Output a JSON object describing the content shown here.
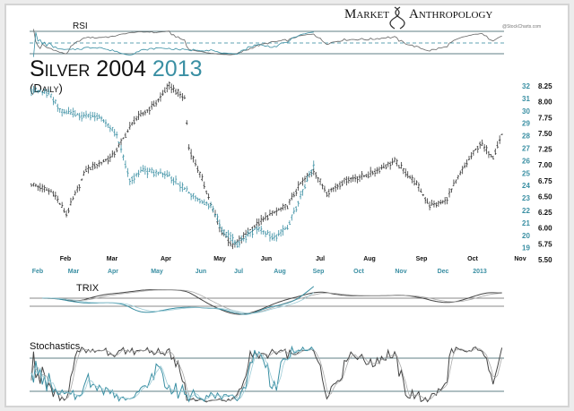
{
  "header": {
    "logo_left": "Market",
    "logo_right": "Anthropology",
    "credit": "@StockCharts.com"
  },
  "title": {
    "main": "Silver 2004",
    "accent": "2013",
    "subtitle": "(Daily)"
  },
  "colors": {
    "series_2004": "#333333",
    "series_2013": "#3a8fa3",
    "accent_text": "#3a8fa3",
    "guide": "#5f7f86"
  },
  "chart_data": {
    "type": "line",
    "title": "Silver 2004 2013 (Daily)",
    "x_unit": "trading day",
    "series": [
      {
        "name": "2004",
        "axis": "right-black",
        "points": [
          [
            0,
            6.7
          ],
          [
            10,
            6.56
          ],
          [
            16,
            6.21
          ],
          [
            25,
            6.92
          ],
          [
            37,
            7.13
          ],
          [
            47,
            7.7
          ],
          [
            57,
            7.98
          ],
          [
            63,
            8.26
          ],
          [
            70,
            8.05
          ],
          [
            72,
            7.27
          ],
          [
            78,
            6.77
          ],
          [
            86,
            6.0
          ],
          [
            92,
            5.71
          ],
          [
            101,
            6.0
          ],
          [
            109,
            6.21
          ],
          [
            117,
            6.35
          ],
          [
            123,
            6.7
          ],
          [
            129,
            6.92
          ],
          [
            135,
            6.56
          ],
          [
            144,
            6.77
          ],
          [
            154,
            6.84
          ],
          [
            166,
            7.06
          ],
          [
            176,
            6.7
          ],
          [
            182,
            6.35
          ],
          [
            189,
            6.42
          ],
          [
            197,
            6.92
          ],
          [
            205,
            7.34
          ],
          [
            211,
            7.13
          ],
          [
            215,
            7.48
          ]
        ]
      },
      {
        "name": "2013",
        "axis": "right-teal",
        "points": [
          [
            0,
            31.7
          ],
          [
            8,
            31.4
          ],
          [
            14,
            29.9
          ],
          [
            23,
            29.6
          ],
          [
            31,
            29.6
          ],
          [
            39,
            28.1
          ],
          [
            45,
            24.5
          ],
          [
            51,
            25.2
          ],
          [
            62,
            24.9
          ],
          [
            72,
            23.4
          ],
          [
            82,
            22.4
          ],
          [
            88,
            20.2
          ],
          [
            94,
            19.3
          ],
          [
            103,
            20.6
          ],
          [
            111,
            19.8
          ],
          [
            117,
            20.6
          ],
          [
            123,
            23.1
          ],
          [
            129,
            25.6
          ]
        ]
      }
    ],
    "axis_2004": {
      "ticks": [
        "8.25",
        "8.00",
        "7.75",
        "7.50",
        "7.25",
        "7.00",
        "6.75",
        "6.50",
        "6.25",
        "6.00",
        "5.75",
        "5.50"
      ],
      "range": [
        5.5,
        8.25
      ]
    },
    "axis_2013": {
      "ticks": [
        "32",
        "31",
        "30",
        "29",
        "28",
        "27",
        "26",
        "25",
        "24",
        "23",
        "22",
        "21",
        "20",
        "19"
      ],
      "range": [
        19,
        32
      ]
    },
    "months_2004": [
      "Feb",
      "Mar",
      "Apr",
      "May",
      "Jun",
      "Jul",
      "Aug",
      "Sep",
      "Oct",
      "Nov"
    ],
    "months_2013": [
      "Feb",
      "Mar",
      "Apr",
      "May",
      "Jun",
      "Jul",
      "Aug",
      "Sep",
      "Oct",
      "Nov",
      "Dec",
      "2013"
    ],
    "indicators": {
      "rsi_label": "RSI",
      "rsi_levels": [
        70,
        50,
        30
      ],
      "trix_label": "TRIX",
      "stoch_label": "Stochastics",
      "stoch_levels": [
        80,
        20
      ]
    }
  }
}
